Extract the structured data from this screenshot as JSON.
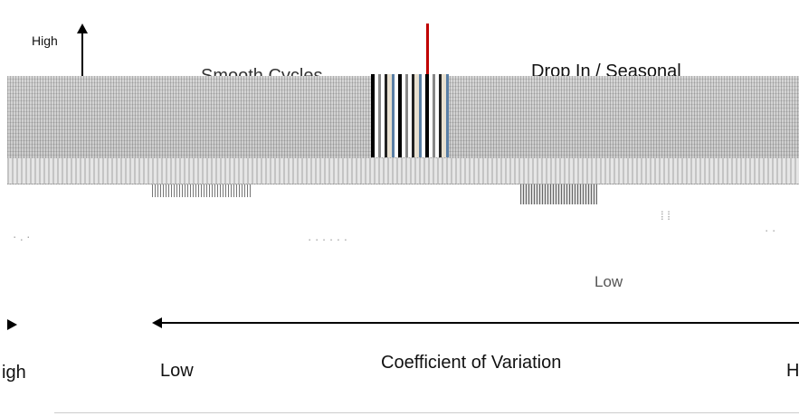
{
  "vertical_axis": {
    "high_label": "High"
  },
  "quadrants": {
    "top_left": "Smooth Cycles",
    "top_right": "Drop In / Seasonal",
    "bottom_right_low": "Low"
  },
  "horizontal_axis": {
    "title": "Coefficient of Variation",
    "left_low_label": "Low",
    "left_edge_label": "igh",
    "right_edge_label": "H"
  },
  "colors": {
    "marker_line": "#c00000",
    "axis": "#000000"
  }
}
